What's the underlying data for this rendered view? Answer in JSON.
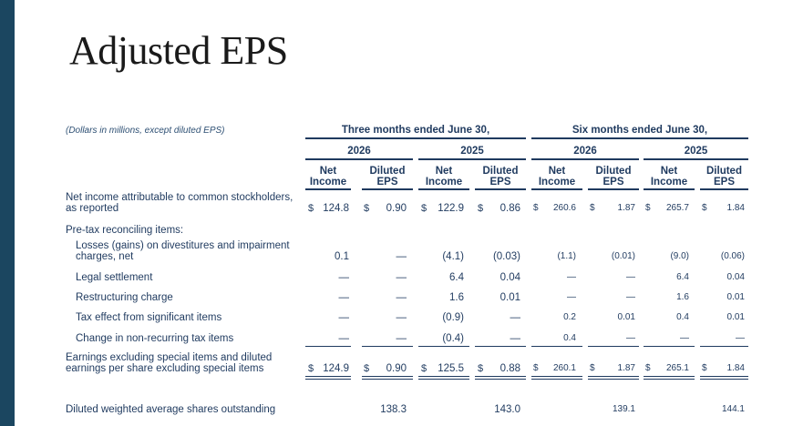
{
  "title": "Adjusted EPS",
  "units_note": "(Dollars in millions, except diluted EPS)",
  "period_headers": [
    "Three months ended June 30,",
    "Six months ended June 30,"
  ],
  "years": [
    "2026",
    "2025",
    "2026",
    "2025"
  ],
  "col_headers": {
    "net_income": [
      "Net",
      "Income"
    ],
    "diluted_eps": [
      "Diluted",
      "EPS"
    ]
  },
  "currency_symbol": "$",
  "rows": [
    {
      "label": [
        "Net income attributable to common stockholders,",
        "as reported"
      ],
      "indent": false,
      "dollar": true,
      "values": [
        "124.8",
        "0.90",
        "122.9",
        "0.86",
        "260.6",
        "1.87",
        "265.7",
        "1.84"
      ]
    },
    {
      "label": [
        "Pre-tax reconciling items:"
      ],
      "indent": false,
      "dollar": false,
      "values": []
    },
    {
      "label": [
        "Losses (gains) on divestitures and impairment",
        "charges, net"
      ],
      "indent": true,
      "dollar": false,
      "values": [
        "0.1",
        "—",
        "(4.1)",
        "(0.03)",
        "(1.1)",
        "(0.01)",
        "(9.0)",
        "(0.06)"
      ]
    },
    {
      "label": [
        "Legal settlement"
      ],
      "indent": true,
      "dollar": false,
      "values": [
        "—",
        "—",
        "6.4",
        "0.04",
        "—",
        "—",
        "6.4",
        "0.04"
      ]
    },
    {
      "label": [
        "Restructuring charge"
      ],
      "indent": true,
      "dollar": false,
      "values": [
        "—",
        "—",
        "1.6",
        "0.01",
        "—",
        "—",
        "1.6",
        "0.01"
      ]
    },
    {
      "label": [
        "Tax effect from significant items"
      ],
      "indent": true,
      "dollar": false,
      "values": [
        "—",
        "—",
        "(0.9)",
        "—",
        "0.2",
        "0.01",
        "0.4",
        "0.01"
      ]
    },
    {
      "label": [
        "Change in non-recurring tax items"
      ],
      "indent": true,
      "dollar": false,
      "values": [
        "—",
        "—",
        "(0.4)",
        "—",
        "0.4",
        "—",
        "—",
        "—"
      ]
    },
    {
      "label": [
        "Earnings excluding special items and diluted",
        "earnings per share excluding special items"
      ],
      "indent": false,
      "dollar": true,
      "values": [
        "124.9",
        "0.90",
        "125.5",
        "0.88",
        "260.1",
        "1.87",
        "265.1",
        "1.84"
      ]
    },
    {
      "label": [
        "Diluted weighted average shares outstanding"
      ],
      "indent": false,
      "dollar": false,
      "values": [
        "",
        "138.3",
        "",
        "143.0",
        "",
        "139.1",
        "",
        "144.1"
      ]
    }
  ]
}
